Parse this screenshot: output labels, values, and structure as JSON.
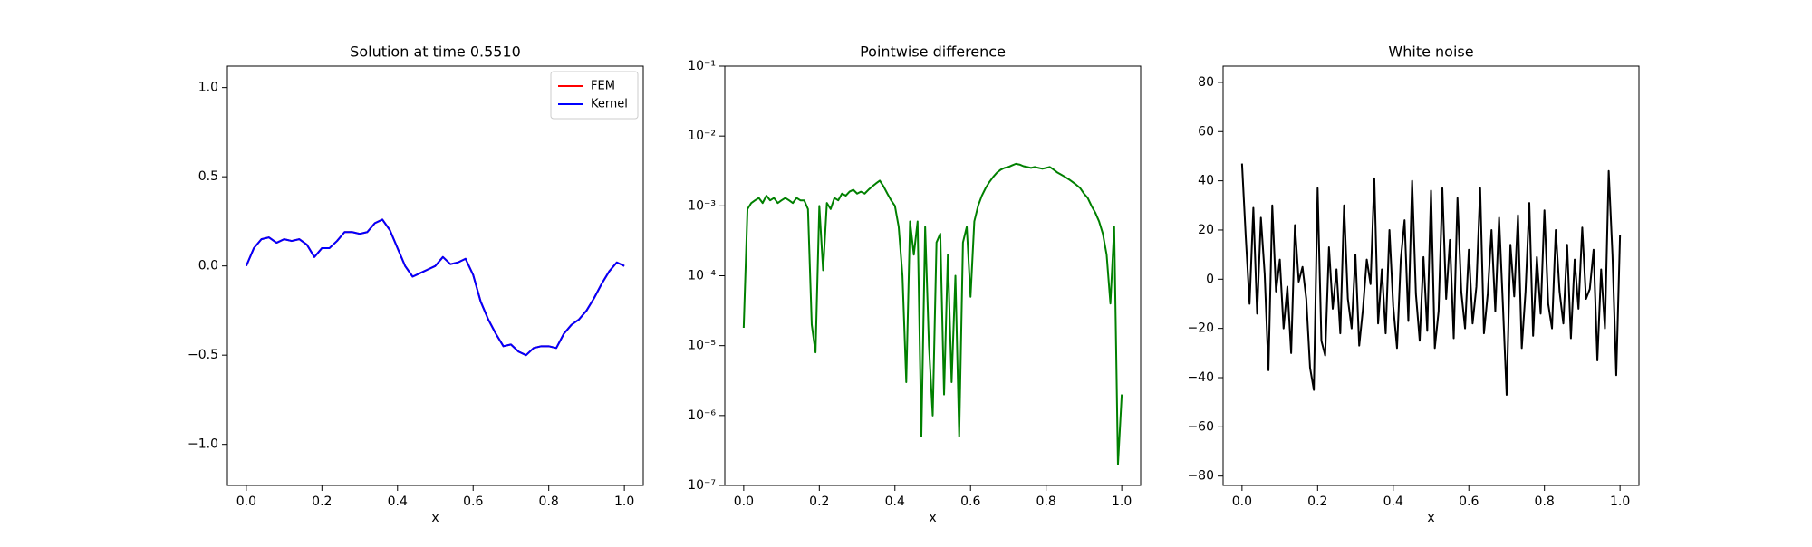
{
  "chart_data": [
    {
      "type": "line",
      "title": "Solution at time 0.5510",
      "xlabel": "x",
      "x": [
        0,
        0.02,
        0.04,
        0.06,
        0.08,
        0.1,
        0.12,
        0.14,
        0.16,
        0.18,
        0.2,
        0.22,
        0.24,
        0.26,
        0.28,
        0.3,
        0.32,
        0.34,
        0.36,
        0.38,
        0.4,
        0.42,
        0.44,
        0.46,
        0.48,
        0.5,
        0.52,
        0.54,
        0.56,
        0.58,
        0.6,
        0.62,
        0.64,
        0.66,
        0.68,
        0.7,
        0.72,
        0.74,
        0.76,
        0.78,
        0.8,
        0.82,
        0.84,
        0.86,
        0.88,
        0.9,
        0.92,
        0.94,
        0.96,
        0.98,
        1.0
      ],
      "series": [
        {
          "name": "FEM",
          "color": "#ff0000",
          "values": [
            0,
            0.1,
            0.15,
            0.16,
            0.13,
            0.15,
            0.14,
            0.15,
            0.12,
            0.05,
            0.1,
            0.1,
            0.14,
            0.19,
            0.19,
            0.18,
            0.19,
            0.24,
            0.26,
            0.2,
            0.1,
            0.0,
            -0.06,
            -0.04,
            -0.02,
            0.0,
            0.05,
            0.01,
            0.02,
            0.04,
            -0.05,
            -0.2,
            -0.3,
            -0.38,
            -0.45,
            -0.44,
            -0.48,
            -0.5,
            -0.46,
            -0.45,
            -0.45,
            -0.46,
            -0.38,
            -0.33,
            -0.3,
            -0.25,
            -0.18,
            -0.1,
            -0.03,
            0.02,
            0.0
          ]
        },
        {
          "name": "Kernel",
          "color": "#0000ff",
          "values": [
            0,
            0.1,
            0.15,
            0.16,
            0.13,
            0.15,
            0.14,
            0.15,
            0.12,
            0.05,
            0.1,
            0.1,
            0.14,
            0.19,
            0.19,
            0.18,
            0.19,
            0.24,
            0.26,
            0.2,
            0.1,
            0.0,
            -0.06,
            -0.04,
            -0.02,
            0.0,
            0.05,
            0.01,
            0.02,
            0.04,
            -0.05,
            -0.2,
            -0.3,
            -0.38,
            -0.45,
            -0.44,
            -0.48,
            -0.5,
            -0.46,
            -0.45,
            -0.45,
            -0.46,
            -0.38,
            -0.33,
            -0.3,
            -0.25,
            -0.18,
            -0.1,
            -0.03,
            0.02,
            0.0
          ]
        }
      ],
      "legend": "upper right",
      "xlim": [
        -0.05,
        1.05
      ],
      "ylim": [
        -1.23,
        1.12
      ],
      "xticks": [
        {
          "value": 0,
          "label": "0.0"
        },
        0.2,
        0.4,
        0.6,
        0.8,
        {
          "value": 1,
          "label": "1.0"
        }
      ],
      "yticks": [
        {
          "value": -1,
          "label": "−1.0"
        },
        {
          "value": -0.5,
          "label": "−0.5"
        },
        {
          "value": 0,
          "label": "0.0"
        },
        0.5,
        {
          "value": 1,
          "label": "1.0"
        }
      ]
    },
    {
      "type": "line",
      "title": "Pointwise difference",
      "xlabel": "x",
      "log_y": true,
      "color": "#008000",
      "x": [
        0,
        0.01,
        0.02,
        0.03,
        0.04,
        0.05,
        0.06,
        0.07,
        0.08,
        0.09,
        0.1,
        0.11,
        0.12,
        0.13,
        0.14,
        0.15,
        0.16,
        0.17,
        0.18,
        0.19,
        0.2,
        0.21,
        0.22,
        0.23,
        0.24,
        0.25,
        0.26,
        0.27,
        0.28,
        0.29,
        0.3,
        0.31,
        0.32,
        0.33,
        0.34,
        0.35,
        0.36,
        0.37,
        0.38,
        0.39,
        0.4,
        0.41,
        0.42,
        0.43,
        0.44,
        0.45,
        0.46,
        0.47,
        0.48,
        0.49,
        0.5,
        0.51,
        0.52,
        0.53,
        0.54,
        0.55,
        0.56,
        0.57,
        0.58,
        0.59,
        0.6,
        0.61,
        0.62,
        0.63,
        0.64,
        0.65,
        0.66,
        0.67,
        0.68,
        0.69,
        0.7,
        0.71,
        0.72,
        0.73,
        0.74,
        0.75,
        0.76,
        0.77,
        0.78,
        0.79,
        0.8,
        0.81,
        0.82,
        0.83,
        0.84,
        0.85,
        0.86,
        0.87,
        0.88,
        0.89,
        0.9,
        0.91,
        0.92,
        0.93,
        0.94,
        0.95,
        0.96,
        0.97,
        0.98,
        0.99,
        1.0
      ],
      "values": [
        1.8e-05,
        0.0009,
        0.0011,
        0.0012,
        0.0013,
        0.0011,
        0.0014,
        0.0012,
        0.0013,
        0.0011,
        0.0012,
        0.0013,
        0.0012,
        0.0011,
        0.0013,
        0.0012,
        0.0012,
        0.0009,
        2e-05,
        8e-06,
        0.001,
        0.00012,
        0.0011,
        0.0009,
        0.0013,
        0.0012,
        0.0015,
        0.0014,
        0.0016,
        0.0017,
        0.0015,
        0.0016,
        0.0015,
        0.0017,
        0.0019,
        0.0021,
        0.0023,
        0.0019,
        0.0015,
        0.0012,
        0.001,
        0.0005,
        0.0001,
        3e-06,
        0.0006,
        0.0002,
        0.0006,
        5e-07,
        0.0005,
        1e-05,
        1e-06,
        0.0003,
        0.0004,
        2e-06,
        0.0002,
        3e-06,
        0.0001,
        5e-07,
        0.0003,
        0.0005,
        5e-05,
        0.0006,
        0.001,
        0.0014,
        0.0018,
        0.0022,
        0.0026,
        0.003,
        0.0033,
        0.0035,
        0.0036,
        0.0038,
        0.004,
        0.0039,
        0.0037,
        0.0036,
        0.0035,
        0.0036,
        0.0035,
        0.0034,
        0.0035,
        0.0036,
        0.0033,
        0.003,
        0.0028,
        0.0026,
        0.0024,
        0.0022,
        0.002,
        0.0018,
        0.0015,
        0.0013,
        0.001,
        0.0008,
        0.0006,
        0.0004,
        0.0002,
        4e-05,
        0.0005,
        2e-07,
        2e-06
      ],
      "xlim": [
        -0.05,
        1.05
      ],
      "ylim": [
        1e-07,
        0.1
      ],
      "xticks": [
        {
          "value": 0,
          "label": "0.0"
        },
        0.2,
        0.4,
        0.6,
        0.8,
        {
          "value": 1,
          "label": "1.0"
        }
      ],
      "yticks": [
        {
          "value": 1e-07,
          "label": "10⁻⁷"
        },
        {
          "value": 1e-06,
          "label": "10⁻⁶"
        },
        {
          "value": 1e-05,
          "label": "10⁻⁵"
        },
        {
          "value": 0.0001,
          "label": "10⁻⁴"
        },
        {
          "value": 0.001,
          "label": "10⁻³"
        },
        {
          "value": 0.01,
          "label": "10⁻²"
        },
        {
          "value": 0.1,
          "label": "10⁻¹"
        }
      ]
    },
    {
      "type": "line",
      "title": "White noise",
      "xlabel": "x",
      "color": "#000000",
      "x": [
        0,
        0.01,
        0.02,
        0.03,
        0.04,
        0.05,
        0.06,
        0.07,
        0.08,
        0.09,
        0.1,
        0.11,
        0.12,
        0.13,
        0.14,
        0.15,
        0.16,
        0.17,
        0.18,
        0.19,
        0.2,
        0.21,
        0.22,
        0.23,
        0.24,
        0.25,
        0.26,
        0.27,
        0.28,
        0.29,
        0.3,
        0.31,
        0.32,
        0.33,
        0.34,
        0.35,
        0.36,
        0.37,
        0.38,
        0.39,
        0.4,
        0.41,
        0.42,
        0.43,
        0.44,
        0.45,
        0.46,
        0.47,
        0.48,
        0.49,
        0.5,
        0.51,
        0.52,
        0.53,
        0.54,
        0.55,
        0.56,
        0.57,
        0.58,
        0.59,
        0.6,
        0.61,
        0.62,
        0.63,
        0.64,
        0.65,
        0.66,
        0.67,
        0.68,
        0.69,
        0.7,
        0.71,
        0.72,
        0.73,
        0.74,
        0.75,
        0.76,
        0.77,
        0.78,
        0.79,
        0.8,
        0.81,
        0.82,
        0.83,
        0.84,
        0.85,
        0.86,
        0.87,
        0.88,
        0.89,
        0.9,
        0.91,
        0.92,
        0.93,
        0.94,
        0.95,
        0.96,
        0.97,
        0.98,
        0.99,
        1.0
      ],
      "values": [
        47,
        17,
        -10,
        29,
        -14,
        25,
        2,
        -37,
        30,
        -5,
        8,
        -20,
        -3,
        -30,
        22,
        -1,
        5,
        -8,
        -36,
        -45,
        37,
        -25,
        -31,
        13,
        -12,
        4,
        -22,
        30,
        -8,
        -20,
        10,
        -27,
        -12,
        8,
        -2,
        41,
        -18,
        4,
        -22,
        20,
        -11,
        -28,
        8,
        24,
        -17,
        40,
        -6,
        -25,
        9,
        -21,
        36,
        -28,
        -13,
        37,
        -8,
        16,
        -24,
        33,
        -5,
        -20,
        12,
        -18,
        -3,
        37,
        -22,
        -6,
        20,
        -13,
        25,
        -10,
        -47,
        14,
        -7,
        26,
        -28,
        -5,
        31,
        -23,
        9,
        -14,
        28,
        -10,
        -20,
        20,
        -5,
        -18,
        14,
        -24,
        8,
        -12,
        21,
        -8,
        -4,
        12,
        -33,
        4,
        -20,
        44,
        10,
        -39,
        18
      ],
      "xlim": [
        -0.05,
        1.05
      ],
      "ylim": [
        -83.8,
        86.6
      ],
      "xticks": [
        {
          "value": 0,
          "label": "0.0"
        },
        0.2,
        0.4,
        0.6,
        0.8,
        {
          "value": 1,
          "label": "1.0"
        }
      ],
      "yticks": [
        {
          "value": -80,
          "label": "−80"
        },
        {
          "value": -60,
          "label": "−60"
        },
        {
          "value": -40,
          "label": "−40"
        },
        {
          "value": -20,
          "label": "−20"
        },
        0,
        20,
        40,
        60,
        80
      ]
    }
  ]
}
